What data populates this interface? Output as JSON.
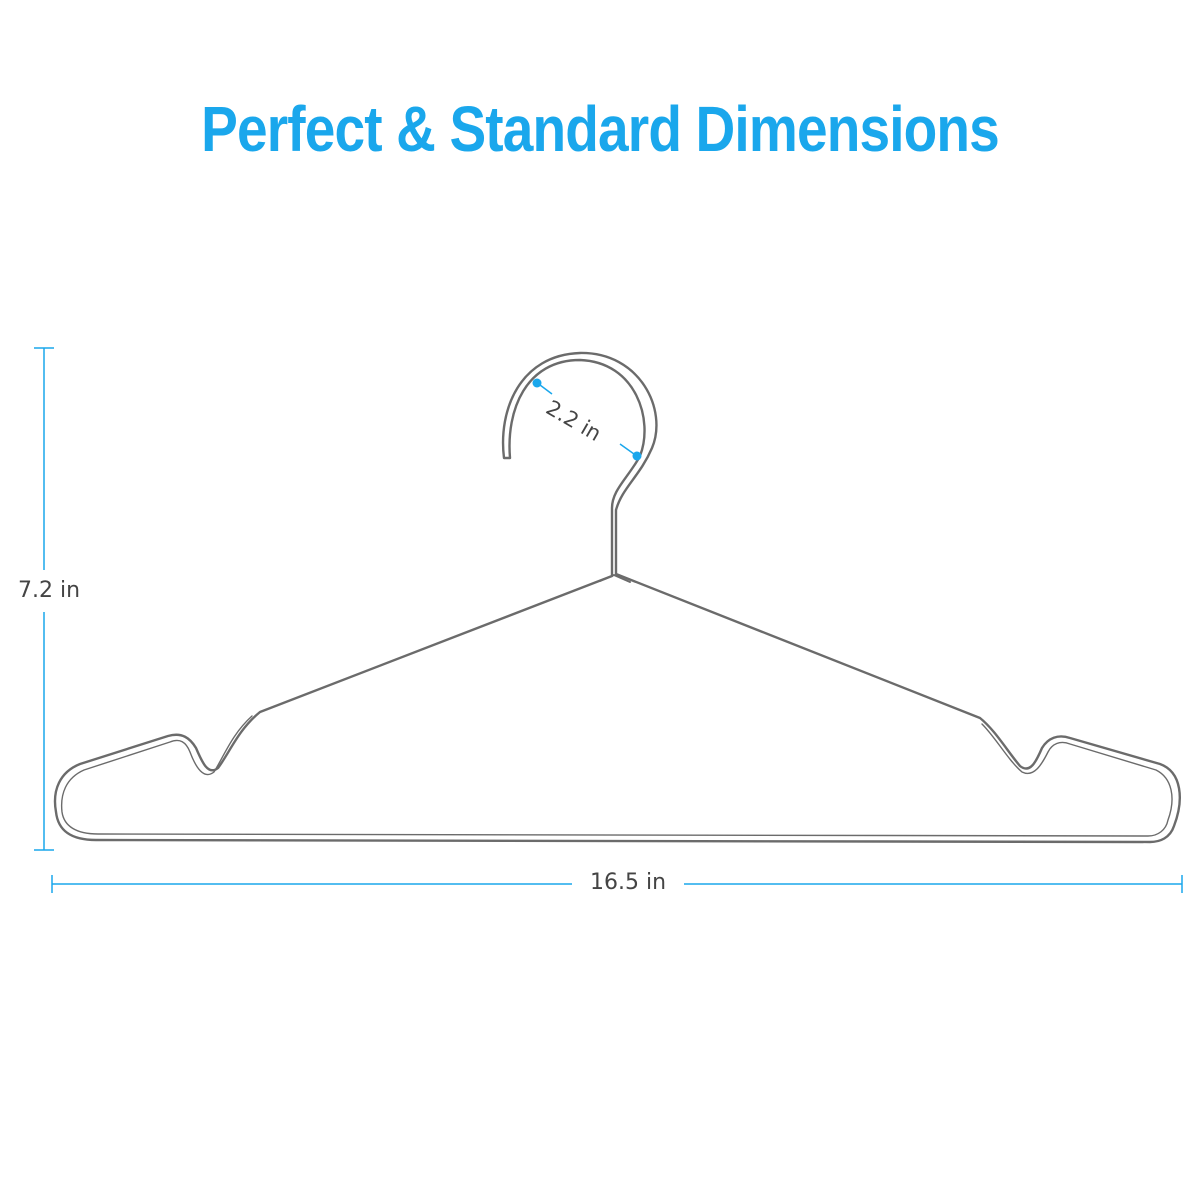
{
  "title": "Perfect & Standard Dimensions",
  "colors": {
    "accent": "#1aa7ec",
    "wire": "#6b6b6b",
    "label": "#444444"
  },
  "dimensions": {
    "height_label": "7.2 in",
    "width_label": "16.5 in",
    "hook_label": "2.2 in"
  }
}
